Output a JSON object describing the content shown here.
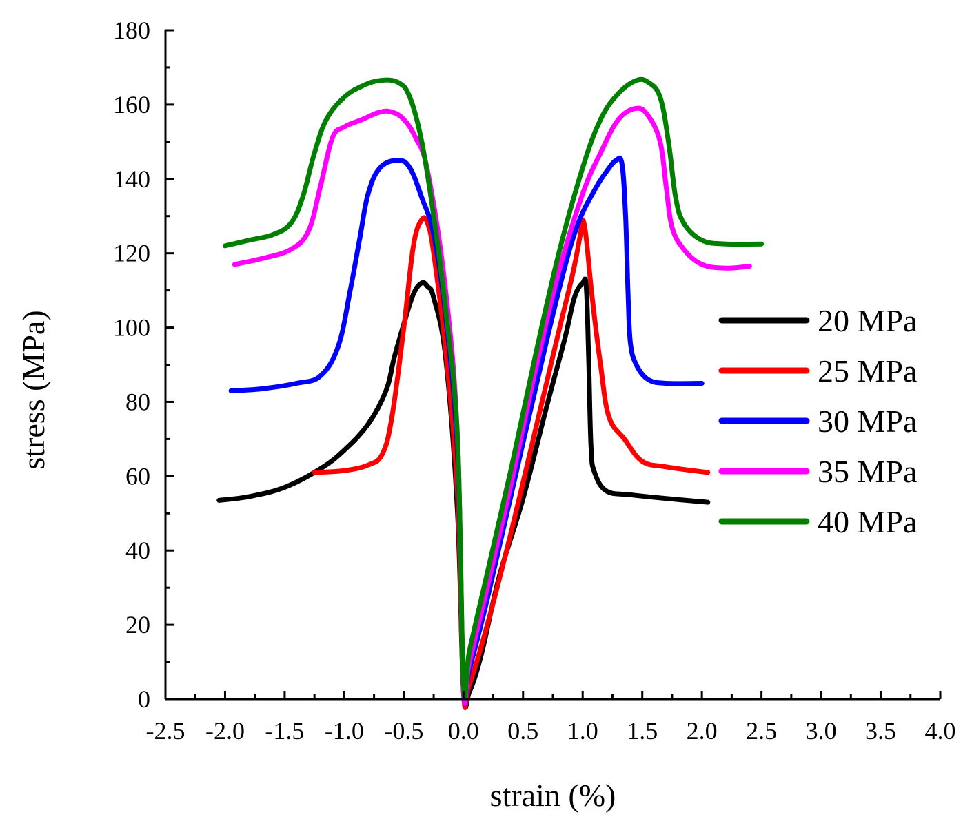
{
  "chart_data": {
    "type": "line",
    "title": "",
    "xlabel": "strain (%)",
    "ylabel": "stress (MPa)",
    "xlim": [
      -2.5,
      4.0
    ],
    "ylim": [
      0,
      180
    ],
    "xticks": [
      "-2.5",
      "-2.0",
      "-1.5",
      "-1.0",
      "-0.5",
      "0.0",
      "0.5",
      "1.0",
      "1.5",
      "2.0",
      "2.5",
      "3.0",
      "3.5",
      "4.0"
    ],
    "yticks": [
      "0",
      "20",
      "40",
      "60",
      "80",
      "100",
      "120",
      "140",
      "160",
      "180"
    ],
    "grid": false,
    "legend_position": "right",
    "series": [
      {
        "name": "20 MPa",
        "color": "#000000",
        "points": [
          [
            -2.05,
            53.5
          ],
          [
            -1.8,
            54.5
          ],
          [
            -1.5,
            57
          ],
          [
            -1.2,
            62
          ],
          [
            -1.0,
            67
          ],
          [
            -0.8,
            74
          ],
          [
            -0.65,
            83
          ],
          [
            -0.58,
            92
          ],
          [
            -0.5,
            101
          ],
          [
            -0.42,
            109
          ],
          [
            -0.35,
            112
          ],
          [
            -0.3,
            111
          ],
          [
            -0.25,
            108
          ],
          [
            -0.15,
            92
          ],
          [
            -0.05,
            50
          ],
          [
            0.0,
            2
          ],
          [
            0.05,
            2
          ],
          [
            0.15,
            12
          ],
          [
            0.3,
            33
          ],
          [
            0.5,
            54
          ],
          [
            0.7,
            79
          ],
          [
            0.85,
            97
          ],
          [
            0.93,
            108
          ],
          [
            1.0,
            112
          ],
          [
            1.03,
            111
          ],
          [
            1.05,
            92
          ],
          [
            1.07,
            68
          ],
          [
            1.1,
            61
          ],
          [
            1.2,
            56
          ],
          [
            1.4,
            55
          ],
          [
            1.7,
            54
          ],
          [
            2.05,
            53
          ]
        ]
      },
      {
        "name": "25 MPa",
        "color": "#ff0000",
        "points": [
          [
            -1.25,
            61
          ],
          [
            -1.0,
            61.5
          ],
          [
            -0.8,
            63
          ],
          [
            -0.68,
            66
          ],
          [
            -0.6,
            76
          ],
          [
            -0.5,
            100
          ],
          [
            -0.42,
            122
          ],
          [
            -0.35,
            129
          ],
          [
            -0.3,
            128
          ],
          [
            -0.25,
            120
          ],
          [
            -0.15,
            94
          ],
          [
            -0.05,
            55
          ],
          [
            0.0,
            2
          ],
          [
            0.05,
            4
          ],
          [
            0.2,
            20
          ],
          [
            0.4,
            45
          ],
          [
            0.6,
            72
          ],
          [
            0.8,
            99
          ],
          [
            0.92,
            115
          ],
          [
            0.98,
            125
          ],
          [
            1.0,
            129
          ],
          [
            1.03,
            124
          ],
          [
            1.08,
            108
          ],
          [
            1.15,
            90
          ],
          [
            1.22,
            76
          ],
          [
            1.35,
            70
          ],
          [
            1.5,
            64
          ],
          [
            1.7,
            62.5
          ],
          [
            2.05,
            61
          ]
        ]
      },
      {
        "name": "30 MPa",
        "color": "#0000ff",
        "points": [
          [
            -1.95,
            83
          ],
          [
            -1.7,
            83.5
          ],
          [
            -1.4,
            85
          ],
          [
            -1.2,
            87
          ],
          [
            -1.05,
            95
          ],
          [
            -0.95,
            110
          ],
          [
            -0.87,
            124
          ],
          [
            -0.8,
            136
          ],
          [
            -0.7,
            143
          ],
          [
            -0.55,
            145
          ],
          [
            -0.45,
            143
          ],
          [
            -0.35,
            135
          ],
          [
            -0.25,
            125
          ],
          [
            -0.15,
            103
          ],
          [
            -0.05,
            66
          ],
          [
            0.0,
            3
          ],
          [
            0.05,
            8
          ],
          [
            0.2,
            27
          ],
          [
            0.4,
            55
          ],
          [
            0.6,
            83
          ],
          [
            0.8,
            110
          ],
          [
            0.95,
            127
          ],
          [
            1.1,
            137
          ],
          [
            1.2,
            142
          ],
          [
            1.28,
            145
          ],
          [
            1.33,
            144
          ],
          [
            1.36,
            130
          ],
          [
            1.38,
            110
          ],
          [
            1.4,
            96
          ],
          [
            1.45,
            90
          ],
          [
            1.55,
            86
          ],
          [
            1.7,
            85
          ],
          [
            2.0,
            85
          ]
        ]
      },
      {
        "name": "35 MPa",
        "color": "#ff00ff",
        "points": [
          [
            -1.92,
            117
          ],
          [
            -1.7,
            118.5
          ],
          [
            -1.45,
            121
          ],
          [
            -1.3,
            126
          ],
          [
            -1.2,
            138
          ],
          [
            -1.1,
            151
          ],
          [
            -1.0,
            154
          ],
          [
            -0.85,
            156
          ],
          [
            -0.7,
            158
          ],
          [
            -0.6,
            158
          ],
          [
            -0.5,
            156
          ],
          [
            -0.4,
            151
          ],
          [
            -0.3,
            142
          ],
          [
            -0.15,
            110
          ],
          [
            -0.05,
            70
          ],
          [
            0.0,
            3
          ],
          [
            0.05,
            10
          ],
          [
            0.2,
            30
          ],
          [
            0.4,
            58
          ],
          [
            0.6,
            88
          ],
          [
            0.8,
            115
          ],
          [
            1.0,
            136
          ],
          [
            1.15,
            147
          ],
          [
            1.3,
            156
          ],
          [
            1.45,
            159
          ],
          [
            1.55,
            157
          ],
          [
            1.65,
            150
          ],
          [
            1.7,
            138
          ],
          [
            1.75,
            127
          ],
          [
            1.85,
            121
          ],
          [
            2.0,
            117
          ],
          [
            2.2,
            116
          ],
          [
            2.4,
            116.5
          ]
        ]
      },
      {
        "name": "40 MPa",
        "color": "#007f00",
        "points": [
          [
            -2.0,
            122
          ],
          [
            -1.8,
            123.5
          ],
          [
            -1.6,
            125
          ],
          [
            -1.45,
            128
          ],
          [
            -1.35,
            135
          ],
          [
            -1.25,
            147
          ],
          [
            -1.15,
            156
          ],
          [
            -1.0,
            162
          ],
          [
            -0.85,
            165
          ],
          [
            -0.7,
            166.5
          ],
          [
            -0.55,
            166
          ],
          [
            -0.45,
            162
          ],
          [
            -0.35,
            150
          ],
          [
            -0.25,
            130
          ],
          [
            -0.15,
            105
          ],
          [
            -0.05,
            70
          ],
          [
            0.0,
            4
          ],
          [
            0.05,
            13
          ],
          [
            0.2,
            34
          ],
          [
            0.4,
            62
          ],
          [
            0.6,
            92
          ],
          [
            0.8,
            120
          ],
          [
            1.0,
            143
          ],
          [
            1.15,
            156
          ],
          [
            1.3,
            163
          ],
          [
            1.45,
            166.5
          ],
          [
            1.55,
            166
          ],
          [
            1.65,
            162
          ],
          [
            1.72,
            150
          ],
          [
            1.78,
            135
          ],
          [
            1.85,
            128
          ],
          [
            2.0,
            123.5
          ],
          [
            2.2,
            122.5
          ],
          [
            2.5,
            122.5
          ]
        ]
      }
    ]
  }
}
